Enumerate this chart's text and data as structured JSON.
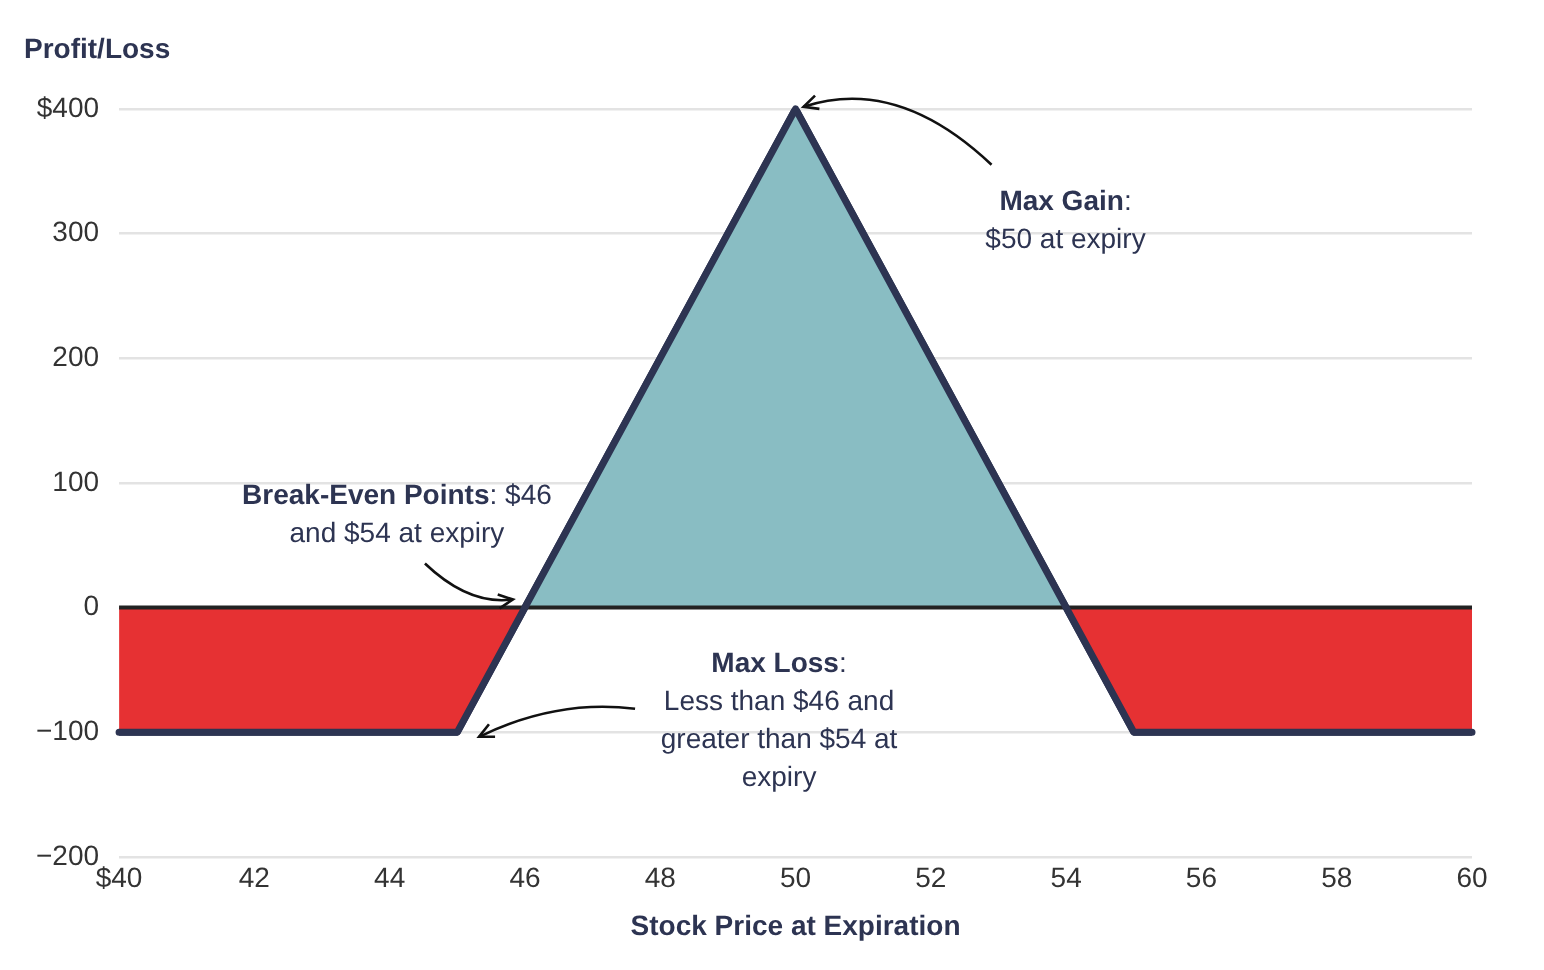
{
  "chart_data": {
    "type": "area",
    "xlabel": "Stock Price at Expiration",
    "ylabel": "Profit/Loss",
    "xlim": [
      40,
      60
    ],
    "xticks": [
      {
        "value": 40,
        "label": "$40"
      },
      42,
      44,
      46,
      48,
      50,
      52,
      54,
      56,
      58,
      60
    ],
    "ylim": [
      -200,
      400
    ],
    "yticks": [
      {
        "value": -200,
        "label": "−200"
      },
      {
        "value": -100,
        "label": "−100"
      },
      0,
      100,
      200,
      300,
      {
        "value": 400,
        "label": "$400"
      }
    ],
    "grid": "y",
    "legend": false,
    "series": [
      {
        "color": "#89bdc3",
        "x": [
          46,
          50,
          54
        ],
        "values": [
          0,
          400,
          0
        ]
      },
      {
        "color": "#e63133",
        "x": [
          40,
          45,
          46
        ],
        "values": [
          -100,
          -100,
          0
        ]
      },
      {
        "color": "#e63133",
        "x": [
          54,
          55,
          60
        ],
        "values": [
          0,
          -100,
          -100
        ]
      },
      {
        "type": "line",
        "color": "#2d3452",
        "x": [
          40,
          45,
          50,
          55,
          60
        ],
        "values": [
          -100,
          -100,
          400,
          -100,
          -100
        ]
      }
    ],
    "ref_lines": [
      {
        "axis": "y",
        "value": 0,
        "color": "#222222"
      }
    ],
    "annotations": [
      {
        "text": "Max Gain: $50 at expiry",
        "x": 50,
        "y": 400
      },
      {
        "text": "Break-Even Points: $46 and $54 at expiry",
        "x": 46,
        "y": 0
      },
      "Max Loss: Less than $46 and greater than $54 at expiry"
    ]
  }
}
